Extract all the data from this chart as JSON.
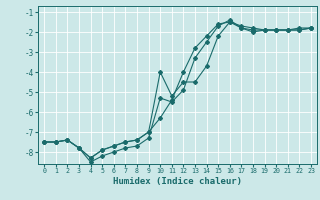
{
  "xlabel": "Humidex (Indice chaleur)",
  "bg_color": "#cce8e8",
  "line_color": "#1a6b6b",
  "grid_color": "#ffffff",
  "xlim": [
    -0.5,
    23.5
  ],
  "ylim": [
    -8.6,
    -0.7
  ],
  "yticks": [
    -8,
    -7,
    -6,
    -5,
    -4,
    -3,
    -2,
    -1
  ],
  "xticks": [
    0,
    1,
    2,
    3,
    4,
    5,
    6,
    7,
    8,
    9,
    10,
    11,
    12,
    13,
    14,
    15,
    16,
    17,
    18,
    19,
    20,
    21,
    22,
    23
  ],
  "line1_x": [
    0,
    1,
    2,
    3,
    4,
    5,
    6,
    7,
    8,
    9,
    10,
    11,
    12,
    13,
    14,
    15,
    16,
    17,
    18,
    19,
    20,
    21,
    22,
    23
  ],
  "line1_y": [
    -7.5,
    -7.5,
    -7.4,
    -7.8,
    -8.3,
    -7.9,
    -7.7,
    -7.5,
    -7.4,
    -7.0,
    -6.3,
    -5.4,
    -4.0,
    -2.8,
    -2.2,
    -1.6,
    -1.5,
    -1.8,
    -1.9,
    -1.9,
    -1.9,
    -1.9,
    -1.9,
    -1.8
  ],
  "line2_x": [
    0,
    1,
    2,
    3,
    4,
    5,
    6,
    7,
    8,
    9,
    10,
    11,
    12,
    13,
    14,
    15,
    16,
    17,
    18,
    19,
    20,
    21,
    22,
    23
  ],
  "line2_y": [
    -7.5,
    -7.5,
    -7.4,
    -7.8,
    -8.5,
    -8.2,
    -8.0,
    -7.8,
    -7.7,
    -7.3,
    -5.3,
    -5.5,
    -4.9,
    -3.3,
    -2.5,
    -1.7,
    -1.4,
    -1.8,
    -2.0,
    -1.9,
    -1.9,
    -1.9,
    -1.8,
    -1.8
  ],
  "line3_x": [
    0,
    1,
    2,
    3,
    4,
    5,
    6,
    7,
    8,
    9,
    10,
    11,
    12,
    13,
    14,
    15,
    16,
    17,
    18,
    19,
    20,
    21,
    22,
    23
  ],
  "line3_y": [
    -7.5,
    -7.5,
    -7.4,
    -7.8,
    -8.3,
    -7.9,
    -7.7,
    -7.5,
    -7.4,
    -7.0,
    -4.0,
    -5.2,
    -4.5,
    -4.5,
    -3.7,
    -2.2,
    -1.5,
    -1.7,
    -1.8,
    -1.9,
    -1.9,
    -1.9,
    -1.9,
    -1.8
  ]
}
